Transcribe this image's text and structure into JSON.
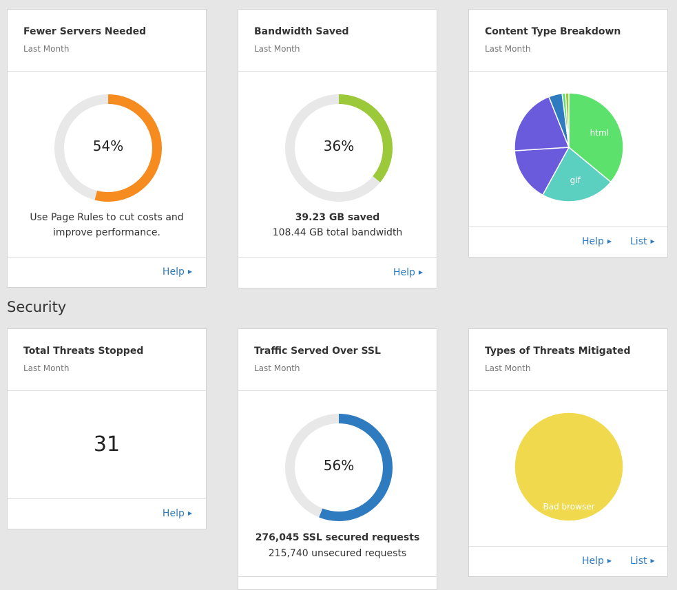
{
  "cards": {
    "fewer_servers": {
      "title": "Fewer Servers Needed",
      "subtitle": "Last Month",
      "percent_label": "54%",
      "percent": 54,
      "color": "#f68b1f",
      "message_line1": "Use Page Rules to cut costs and",
      "message_line2": "improve performance.",
      "help": "Help"
    },
    "bandwidth": {
      "title": "Bandwidth Saved",
      "subtitle": "Last Month",
      "percent_label": "36%",
      "percent": 36,
      "color": "#9bc93a",
      "saved": "39.23 GB saved",
      "total": "108.44 GB total bandwidth",
      "help": "Help"
    },
    "content_type": {
      "title": "Content Type Breakdown",
      "subtitle": "Last Month",
      "help": "Help",
      "list": "List"
    },
    "threats": {
      "title": "Total Threats Stopped",
      "subtitle": "Last Month",
      "value": "31",
      "help": "Help"
    },
    "ssl": {
      "title": "Traffic Served Over SSL",
      "subtitle": "Last Month",
      "percent_label": "56%",
      "percent": 56,
      "color": "#2f7bbf",
      "secured": "276,045 SSL secured requests",
      "unsecured": "215,740 unsecured requests"
    },
    "threat_types": {
      "title": "Types of Threats Mitigated",
      "subtitle": "Last Month",
      "help": "Help",
      "list": "List"
    }
  },
  "section": {
    "security": "Security"
  },
  "chart_data": [
    {
      "type": "pie",
      "slices": [
        {
          "label": "html",
          "value": 36,
          "color": "#5ce26c"
        },
        {
          "label": "gif",
          "value": 22,
          "color": "#5bcfc0"
        },
        {
          "label": "",
          "value": 16,
          "color": "#6a5bdc"
        },
        {
          "label": "",
          "value": 20,
          "color": "#6a5bdc"
        },
        {
          "label": "",
          "value": 4,
          "color": "#2f7bbf"
        },
        {
          "label": "",
          "value": 1,
          "color": "#5ce26c"
        },
        {
          "label": "",
          "value": 1,
          "color": "#9bc93a"
        }
      ]
    },
    {
      "type": "pie",
      "slices": [
        {
          "label": "Bad browser",
          "value": 100,
          "color": "#f0d94c"
        }
      ]
    }
  ]
}
